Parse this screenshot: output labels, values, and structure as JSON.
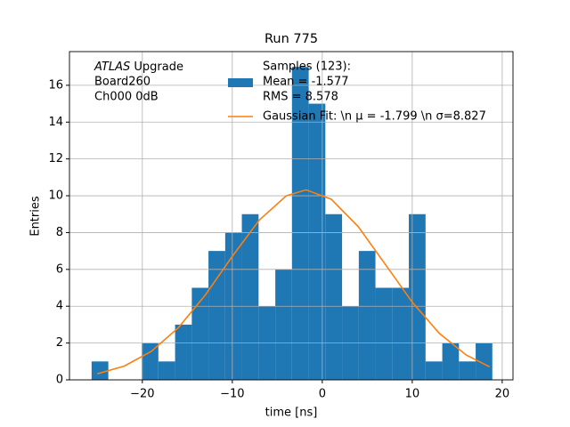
{
  "chart_data": {
    "type": "histogram",
    "title": "Run 775",
    "xlabel": "time [ns]",
    "ylabel": "Entries",
    "bins": [
      -25.64,
      -23.78,
      -21.93,
      -20.07,
      -18.22,
      -16.36,
      -14.5,
      -12.65,
      -10.79,
      -8.94,
      -7.08,
      -5.22,
      -3.37,
      -1.51,
      0.34,
      2.2,
      4.06,
      5.91,
      7.77,
      9.62,
      11.48,
      13.34,
      15.19,
      17.05,
      18.9
    ],
    "series": [
      {
        "name": [
          "Samples (123):",
          " Mean = -1.577",
          " RMS = 8.578"
        ],
        "color": "#1f77b4",
        "values": [
          1,
          0,
          0,
          2,
          1,
          3,
          5,
          7,
          8,
          9,
          4,
          6,
          17,
          15,
          9,
          4,
          7,
          5,
          5,
          9,
          1,
          2,
          1,
          2
        ]
      },
      {
        "name": "Gaussian Fit: \\n μ = -1.799 \\n σ=8.827",
        "color": "#ff7f0e",
        "type": "line",
        "x": [
          -25,
          -22,
          -19,
          -16,
          -13,
          -10,
          -7,
          -4,
          -1.8,
          1,
          4,
          7,
          10,
          13,
          16,
          18.6
        ],
        "values": [
          0.33,
          0.75,
          1.55,
          2.83,
          4.61,
          6.71,
          8.68,
          10.0,
          10.32,
          9.81,
          8.32,
          6.28,
          4.22,
          2.53,
          1.35,
          0.71
        ]
      }
    ],
    "annotation": {
      "emphasis": "ATLAS",
      "lines": [
        " Upgrade",
        " Board260",
        " Ch000 0dB"
      ]
    },
    "xlim": [
      -28.1,
      21.2
    ],
    "ylim": [
      0,
      17.83
    ],
    "xticks": [
      {
        "value": -20,
        "label": "−20"
      },
      {
        "value": -10,
        "label": "−10"
      },
      0,
      10,
      20
    ],
    "yticks": [
      0,
      2,
      4,
      6,
      8,
      10,
      12,
      14,
      16
    ],
    "grid": true,
    "legend": "upper center"
  }
}
